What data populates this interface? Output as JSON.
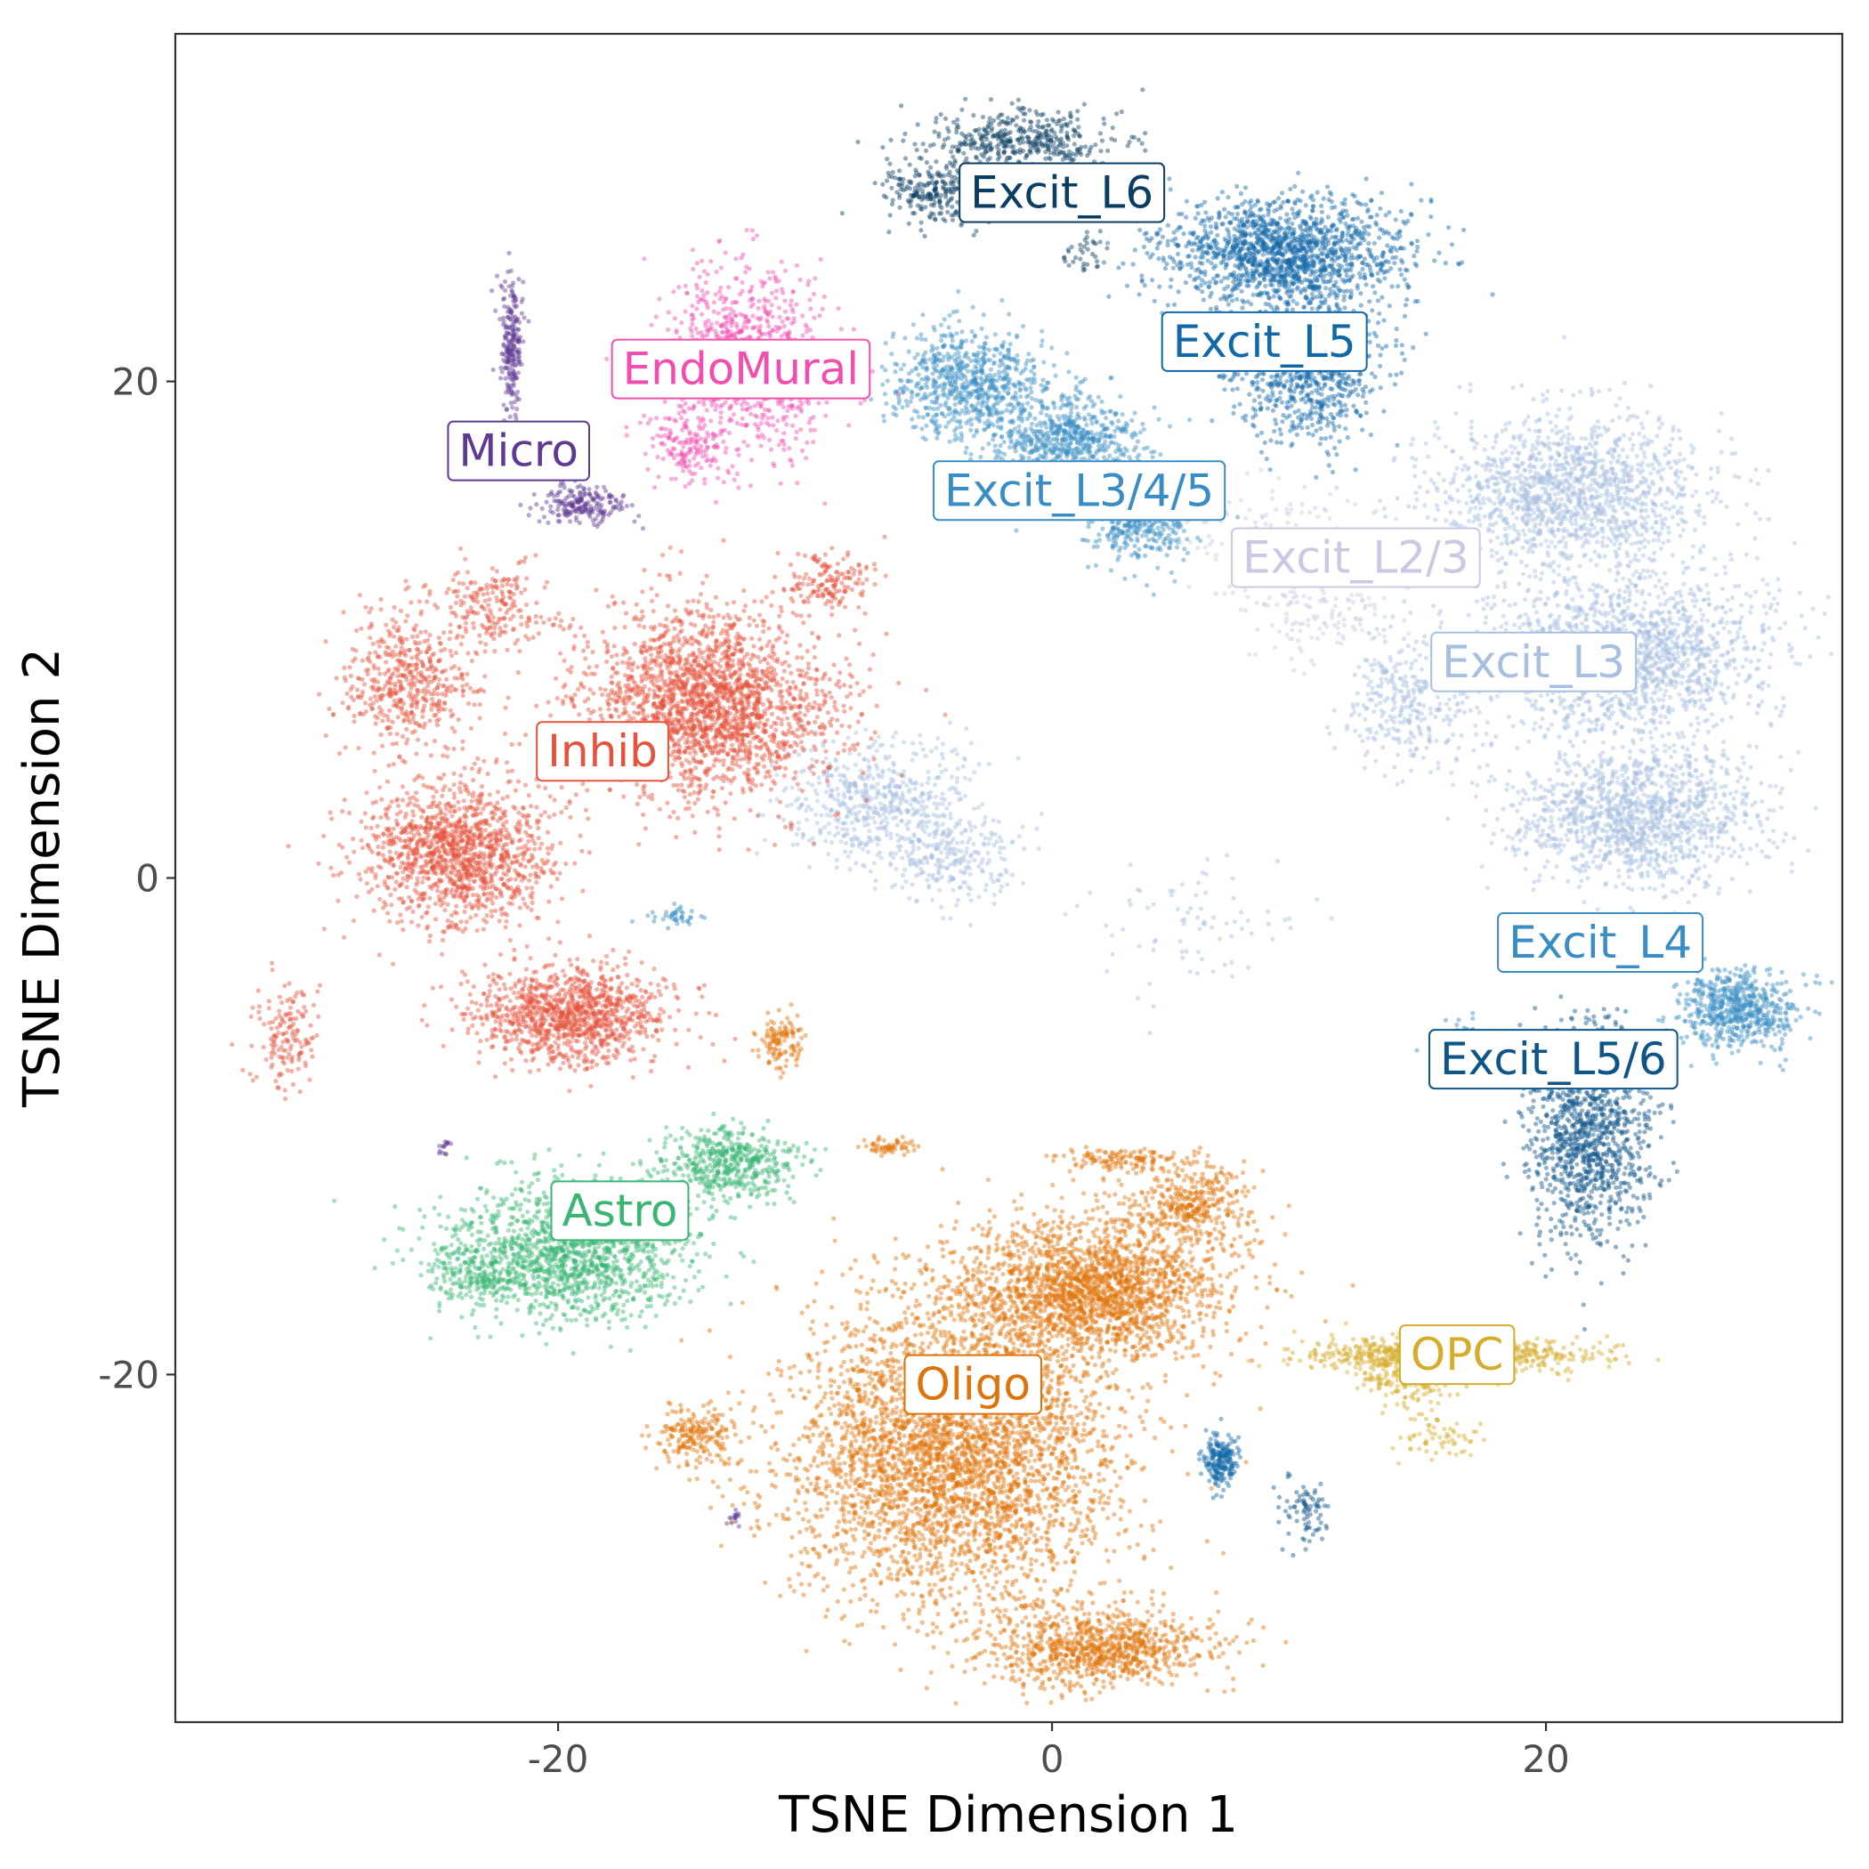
{
  "chart_data": {
    "type": "scatter",
    "title": "",
    "xlabel": "TSNE Dimension 1",
    "ylabel": "TSNE Dimension 2",
    "xlim": [
      -35.5,
      32
    ],
    "ylim": [
      -34,
      34
    ],
    "x_ticks": [
      -20,
      0,
      20
    ],
    "y_ticks": [
      -20,
      0,
      20
    ],
    "x_tick_labels": [
      "-20",
      "0",
      "20"
    ],
    "y_tick_labels": [
      "-20",
      "0",
      "20"
    ],
    "grid": false,
    "legend": "none",
    "series": [
      {
        "name": "Excit_L6",
        "color": "#0b3d62",
        "label_pos": [
          0.4,
          27.6
        ],
        "clusters": [
          [
            -1,
            29.7,
            3.6,
            1.1,
            420
          ],
          [
            -4.8,
            27.6,
            2.0,
            1.2,
            260
          ],
          [
            1.3,
            25.2,
            0.9,
            0.8,
            35
          ]
        ]
      },
      {
        "name": "Excit_L5",
        "color": "#1168a8",
        "label_pos": [
          8.6,
          21.6
        ],
        "clusters": [
          [
            9.5,
            25.2,
            4.4,
            2.0,
            1500
          ],
          [
            10.6,
            20.5,
            2.4,
            2.6,
            800
          ],
          [
            7.0,
            21.2,
            1.2,
            1.0,
            100
          ]
        ]
      },
      {
        "name": "Excit_L3/4/5",
        "color": "#3a8dc4",
        "label_pos": [
          1.1,
          15.6
        ],
        "clusters": [
          [
            -3.5,
            20.0,
            2.8,
            2.0,
            700
          ],
          [
            0.5,
            17.5,
            3.0,
            1.8,
            750
          ],
          [
            3.5,
            14.5,
            2.0,
            1.6,
            450
          ],
          [
            -2.3,
            15.2,
            1.3,
            0.5,
            60
          ]
        ]
      },
      {
        "name": "Excit_L2/3",
        "color": "#c9c9e3",
        "label_pos": [
          12.3,
          12.9
        ],
        "clusters": [
          [
            9.0,
            13.5,
            3.5,
            2.0,
            150
          ],
          [
            11.0,
            10.5,
            3.0,
            1.8,
            120
          ]
        ]
      },
      {
        "name": "Excit_L3",
        "color": "#a7bfe0",
        "label_pos": [
          19.5,
          8.7
        ],
        "clusters": [
          [
            21.0,
            15.5,
            5.0,
            2.8,
            1400
          ],
          [
            23.5,
            9.0,
            5.0,
            3.0,
            1500
          ],
          [
            23.5,
            2.5,
            4.5,
            2.6,
            1300
          ],
          [
            14.5,
            7.0,
            2.5,
            2.4,
            300
          ],
          [
            -7.0,
            3.0,
            3.5,
            2.2,
            550
          ],
          [
            -4.0,
            0.8,
            2.5,
            1.6,
            250
          ],
          [
            6.0,
            -1.5,
            4.0,
            2.5,
            80
          ]
        ]
      },
      {
        "name": "Excit_L4",
        "color": "#3a8dc4",
        "label_pos": [
          22.2,
          -2.6
        ],
        "clusters": [
          [
            27.8,
            -5.3,
            2.2,
            1.4,
            600
          ],
          [
            16.5,
            -6.5,
            1.2,
            0.8,
            40
          ],
          [
            -15.2,
            -1.6,
            1.0,
            0.4,
            40
          ]
        ]
      },
      {
        "name": "Excit_L5/6",
        "color": "#0d5489",
        "label_pos": [
          20.3,
          -7.3
        ],
        "clusters": [
          [
            21.8,
            -10.3,
            2.3,
            4.0,
            1100
          ],
          [
            10.3,
            -25.5,
            0.8,
            1.2,
            80
          ]
        ]
      },
      {
        "name": "EndoMural",
        "color": "#f24eb0",
        "label_pos": [
          -12.6,
          20.5
        ],
        "clusters": [
          [
            -12.4,
            20.8,
            3.0,
            3.2,
            900
          ],
          [
            -14.8,
            17.3,
            1.5,
            1.2,
            150
          ]
        ]
      },
      {
        "name": "Micro",
        "color": "#5f3a93",
        "label_pos": [
          -21.6,
          17.2
        ],
        "clusters": [
          [
            -21.9,
            21.5,
            0.4,
            2.5,
            230
          ],
          [
            -19.0,
            15.0,
            1.6,
            0.7,
            200
          ],
          [
            -12.8,
            -25.8,
            0.3,
            0.3,
            15
          ],
          [
            -24.6,
            -10.8,
            0.3,
            0.3,
            15
          ]
        ]
      },
      {
        "name": "Inhib",
        "color": "#e5533c",
        "label_pos": [
          -18.2,
          5.1
        ],
        "clusters": [
          [
            -14.0,
            7.0,
            4.5,
            3.3,
            2200
          ],
          [
            -24.0,
            1.0,
            3.5,
            2.5,
            1300
          ],
          [
            -19.5,
            -5.5,
            3.5,
            1.8,
            1100
          ],
          [
            -26.0,
            8.0,
            2.5,
            2.5,
            500
          ],
          [
            -22.5,
            11.0,
            2.0,
            1.5,
            200
          ],
          [
            -31.0,
            -6.5,
            1.2,
            2.0,
            150
          ],
          [
            -9.0,
            12.0,
            1.5,
            1.0,
            150
          ]
        ]
      },
      {
        "name": "Astro",
        "color": "#3ab574",
        "label_pos": [
          -17.5,
          -13.4
        ],
        "clusters": [
          [
            -19.5,
            -15.0,
            4.5,
            2.5,
            1500
          ],
          [
            -13.0,
            -11.5,
            2.5,
            1.3,
            500
          ],
          [
            -23.5,
            -16.0,
            1.5,
            1.0,
            150
          ]
        ]
      },
      {
        "name": "Oligo",
        "color": "#df7309",
        "label_pos": [
          -3.2,
          -20.4
        ],
        "clusters": [
          [
            -4.0,
            -23.0,
            6.0,
            5.5,
            3800
          ],
          [
            2.0,
            -31.0,
            4.0,
            1.5,
            900
          ],
          [
            1.5,
            -16.5,
            5.0,
            2.5,
            2000
          ],
          [
            5.5,
            -13.0,
            2.5,
            1.6,
            400
          ],
          [
            -14.5,
            -22.5,
            1.5,
            1.0,
            200
          ],
          [
            -11.0,
            -6.5,
            1.0,
            1.0,
            120
          ],
          [
            2.5,
            -11.3,
            2.0,
            0.4,
            120
          ],
          [
            -6.5,
            -10.8,
            1.0,
            0.3,
            60
          ]
        ]
      },
      {
        "name": "OPC",
        "color": "#d4ad2d",
        "label_pos": [
          16.4,
          -19.2
        ],
        "clusters": [
          [
            16.0,
            -19.2,
            5.0,
            0.6,
            900
          ],
          [
            14.5,
            -20.3,
            2.0,
            0.9,
            150
          ],
          [
            16.0,
            -22.5,
            1.5,
            0.7,
            60
          ]
        ]
      }
    ],
    "isolated_blobs": [
      {
        "series": "Excit_L5",
        "x": 6.8,
        "y": -23.5,
        "sx": 0.6,
        "sy": 1.0,
        "n": 200
      }
    ]
  }
}
